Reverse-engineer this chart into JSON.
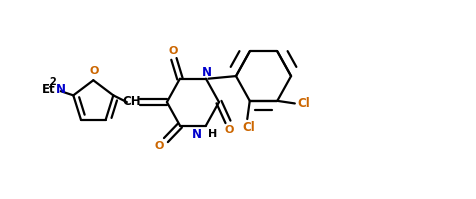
{
  "background_color": "#ffffff",
  "bond_color": "#000000",
  "cl_color": "#cc6600",
  "n_color": "#0000cc",
  "o_color": "#cc6600",
  "figsize": [
    4.77,
    1.99
  ],
  "dpi": 100,
  "xlim": [
    0,
    9.5
  ],
  "ylim": [
    0,
    3.8
  ]
}
